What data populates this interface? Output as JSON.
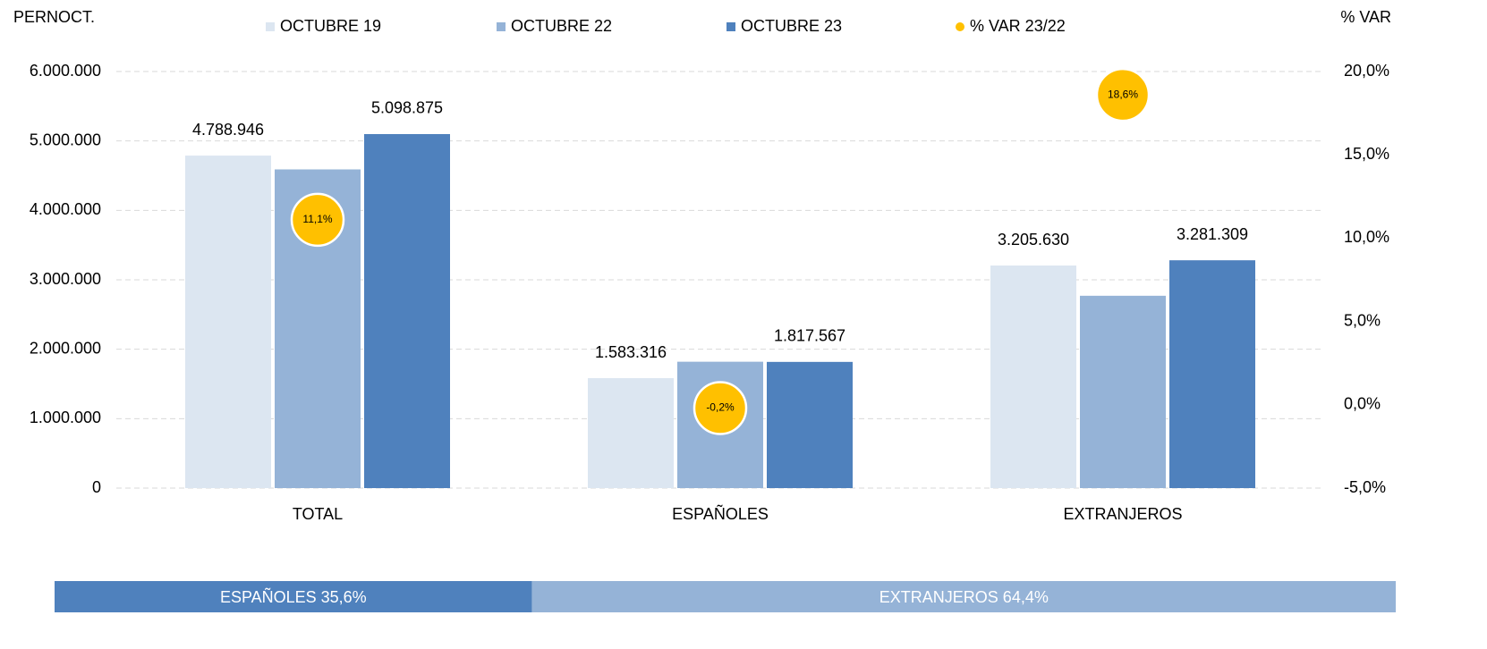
{
  "chart_data": {
    "type": "bar",
    "y_label": "PERNOCT.",
    "y2_label": "% VAR",
    "categories": [
      "TOTAL",
      "ESPAÑOLES",
      "EXTRANJEROS"
    ],
    "series": [
      {
        "name": "OCTUBRE 19",
        "color": "#dce6f1",
        "values": [
          4788946,
          1583316,
          3205630
        ],
        "value_labels": [
          "4.788.946",
          "1.583.316",
          "3.205.630"
        ]
      },
      {
        "name": "OCTUBRE 22",
        "color": "#95b3d7",
        "values": [
          4590000,
          1820000,
          2770000
        ]
      },
      {
        "name": "OCTUBRE 23",
        "color": "#4f81bd",
        "values": [
          5098875,
          1817567,
          3281309
        ],
        "value_labels": [
          "5.098.875",
          "1.817.567",
          "3.281.309"
        ]
      },
      {
        "name": "% VAR 23/22",
        "type": "scatter",
        "axis": "y2",
        "color": "#ffc000",
        "values": [
          11.1,
          -0.2,
          18.6
        ],
        "value_labels": [
          "11,1%",
          "-0,2%",
          "18,6%"
        ]
      }
    ],
    "ylim": [
      0,
      6000000
    ],
    "yticks": [
      0,
      {
        "value": 1000000,
        "label": "1.000.000"
      },
      {
        "value": 2000000,
        "label": "2.000.000"
      },
      {
        "value": 3000000,
        "label": "3.000.000"
      },
      {
        "value": 4000000,
        "label": "4.000.000"
      },
      {
        "value": 5000000,
        "label": "5.000.000"
      },
      {
        "value": 6000000,
        "label": "6.000.000"
      }
    ],
    "y2lim": [
      -5,
      20
    ],
    "y2ticks": [
      {
        "value": -5,
        "label": "-5,0%"
      },
      {
        "value": 0,
        "label": "0,0%"
      },
      {
        "value": 5,
        "label": "5,0%"
      },
      {
        "value": 10,
        "label": "10,0%"
      },
      {
        "value": 15,
        "label": "15,0%"
      },
      {
        "value": 20,
        "label": "20,0%"
      }
    ],
    "grid": true,
    "legend": "top",
    "share_bar": {
      "labels": [
        "ESPAÑOLES 35,6%",
        "EXTRANJEROS 64,4%"
      ],
      "values": [
        35.6,
        64.4
      ],
      "colors": [
        "#4f81bd",
        "#95b3d7"
      ]
    }
  }
}
